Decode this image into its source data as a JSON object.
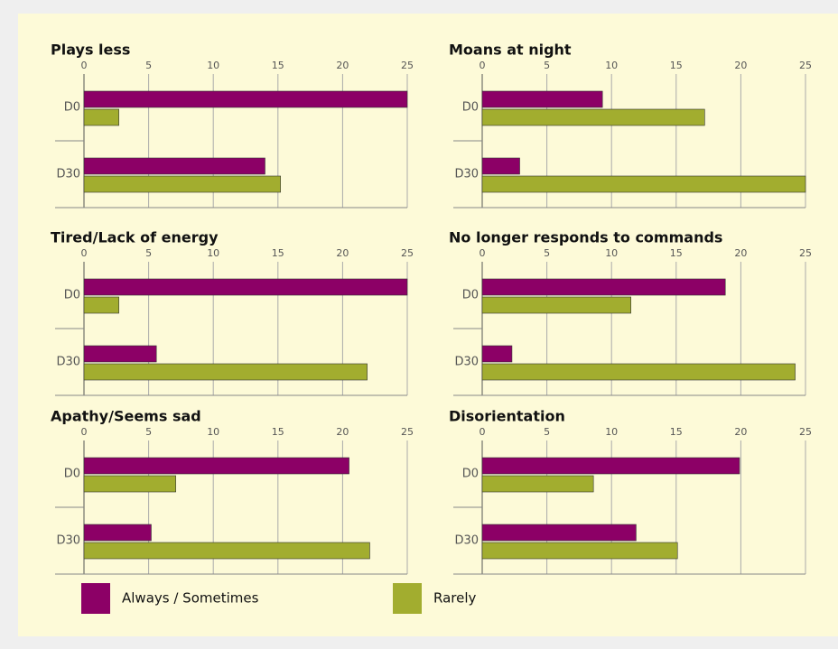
{
  "legend": [
    {
      "name": "Always / Sometimes",
      "color": "#8c0066"
    },
    {
      "name": "Rarely",
      "color": "#a2ad2f"
    }
  ],
  "chart_data": [
    {
      "type": "bar",
      "orientation": "horizontal",
      "title": "Plays less",
      "categories": [
        "D0",
        "D30"
      ],
      "series": [
        {
          "values": [
            25,
            14
          ]
        },
        {
          "values": [
            2.7,
            15.2
          ]
        }
      ],
      "xlim": [
        0,
        25
      ],
      "xticks": [
        0,
        5,
        10,
        15,
        20,
        25
      ],
      "grid": true
    },
    {
      "type": "bar",
      "orientation": "horizontal",
      "title": "Moans at night",
      "categories": [
        "D0",
        "D30"
      ],
      "series": [
        {
          "values": [
            9.3,
            2.9
          ]
        },
        {
          "values": [
            17.2,
            25
          ]
        }
      ],
      "xlim": [
        0,
        25
      ],
      "xticks": [
        0,
        5,
        10,
        15,
        20,
        25
      ],
      "grid": true
    },
    {
      "type": "bar",
      "orientation": "horizontal",
      "title": "Tired/Lack of energy",
      "categories": [
        "D0",
        "D30"
      ],
      "series": [
        {
          "values": [
            25,
            5.6
          ]
        },
        {
          "values": [
            2.7,
            21.9
          ]
        }
      ],
      "xlim": [
        0,
        25
      ],
      "xticks": [
        0,
        5,
        10,
        15,
        20,
        25
      ],
      "grid": true
    },
    {
      "type": "bar",
      "orientation": "horizontal",
      "title": "No longer responds to commands",
      "categories": [
        "D0",
        "D30"
      ],
      "series": [
        {
          "values": [
            18.8,
            2.3
          ]
        },
        {
          "values": [
            11.5,
            24.2
          ]
        }
      ],
      "xlim": [
        0,
        25
      ],
      "xticks": [
        0,
        5,
        10,
        15,
        20,
        25
      ],
      "grid": true
    },
    {
      "type": "bar",
      "orientation": "horizontal",
      "title": "Apathy/Seems sad",
      "categories": [
        "D0",
        "D30"
      ],
      "series": [
        {
          "values": [
            20.5,
            5.2
          ]
        },
        {
          "values": [
            7.1,
            22.1
          ]
        }
      ],
      "xlim": [
        0,
        25
      ],
      "xticks": [
        0,
        5,
        10,
        15,
        20,
        25
      ],
      "grid": true
    },
    {
      "type": "bar",
      "orientation": "horizontal",
      "title": "Disorientation",
      "categories": [
        "D0",
        "D30"
      ],
      "series": [
        {
          "values": [
            19.9,
            11.9
          ]
        },
        {
          "values": [
            8.6,
            15.1
          ]
        }
      ],
      "xlim": [
        0,
        25
      ],
      "xticks": [
        0,
        5,
        10,
        15,
        20,
        25
      ],
      "grid": true
    }
  ]
}
